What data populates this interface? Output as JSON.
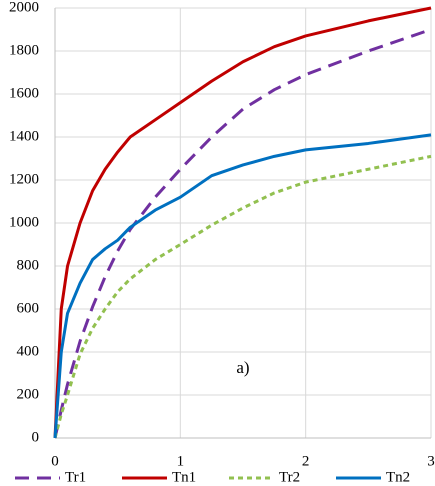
{
  "chart_data": {
    "type": "line",
    "x": [
      0,
      0.05,
      0.1,
      0.2,
      0.3,
      0.4,
      0.5,
      0.6,
      0.8,
      1,
      1.25,
      1.5,
      1.75,
      2,
      2.5,
      3
    ],
    "series": [
      {
        "name": "Tr1",
        "color": "#7030a0",
        "dash": "dashed",
        "values": [
          0,
          130,
          250,
          450,
          610,
          750,
          870,
          970,
          1120,
          1250,
          1400,
          1530,
          1620,
          1690,
          1800,
          1900
        ]
      },
      {
        "name": "Tn1",
        "color": "#c00000",
        "dash": "solid",
        "values": [
          0,
          600,
          800,
          1000,
          1150,
          1250,
          1330,
          1400,
          1480,
          1560,
          1660,
          1750,
          1820,
          1870,
          1940,
          2000
        ]
      },
      {
        "name": "Tr2",
        "color": "#92c050",
        "dash": "dotted",
        "values": [
          0,
          110,
          200,
          390,
          510,
          600,
          680,
          740,
          830,
          900,
          990,
          1070,
          1140,
          1190,
          1250,
          1310
        ]
      },
      {
        "name": "Tn2",
        "color": "#0070c0",
        "dash": "solid",
        "values": [
          0,
          400,
          580,
          720,
          830,
          880,
          920,
          980,
          1060,
          1120,
          1220,
          1270,
          1310,
          1340,
          1370,
          1410
        ]
      }
    ],
    "xlim": [
      0,
      3
    ],
    "xticks": [
      0,
      1,
      2,
      3
    ],
    "ylim": [
      0,
      2000
    ],
    "yticks": [
      0,
      200,
      400,
      600,
      800,
      1000,
      1200,
      1400,
      1600,
      1800,
      2000
    ],
    "grid": true,
    "legend": "bottom",
    "annotation": {
      "text": "a)",
      "x": 1.5,
      "y": 320
    }
  }
}
